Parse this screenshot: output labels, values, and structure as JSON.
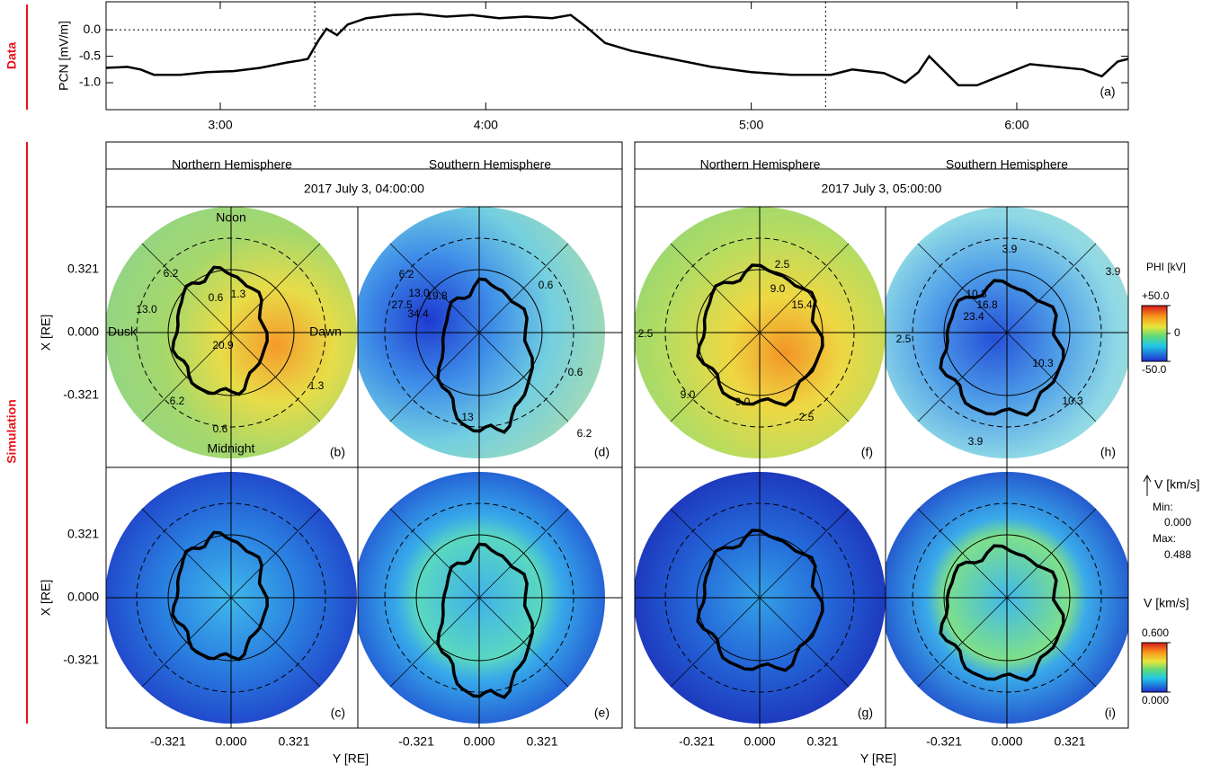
{
  "side_labels": {
    "data": "Data",
    "simulation": "Simulation"
  },
  "chart_data": {
    "type": "line",
    "y_label": "PCN [mV/m]",
    "panel_label": "(a)",
    "x": [
      2.57,
      2.65,
      2.7,
      2.75,
      2.85,
      2.95,
      3.05,
      3.15,
      3.25,
      3.3,
      3.33,
      3.37,
      3.4,
      3.44,
      3.48,
      3.55,
      3.65,
      3.75,
      3.85,
      3.95,
      4.05,
      4.15,
      4.25,
      4.32,
      4.38,
      4.45,
      4.55,
      4.7,
      4.85,
      5.0,
      5.15,
      5.3,
      5.38,
      5.5,
      5.58,
      5.63,
      5.67,
      5.72,
      5.78,
      5.85,
      5.95,
      6.05,
      6.15,
      6.25,
      6.32,
      6.38,
      6.42
    ],
    "values": [
      -0.72,
      -0.7,
      -0.75,
      -0.85,
      -0.85,
      -0.8,
      -0.78,
      -0.72,
      -0.62,
      -0.58,
      -0.55,
      -0.2,
      0.02,
      -0.1,
      0.1,
      0.22,
      0.28,
      0.3,
      0.25,
      0.28,
      0.22,
      0.25,
      0.22,
      0.28,
      0.05,
      -0.25,
      -0.4,
      -0.55,
      -0.7,
      -0.8,
      -0.85,
      -0.85,
      -0.75,
      -0.82,
      -1.0,
      -0.8,
      -0.5,
      -0.75,
      -1.05,
      -1.05,
      -0.85,
      -0.65,
      -0.7,
      -0.75,
      -0.88,
      -0.6,
      -0.55
    ],
    "color": "#000000",
    "xlim": [
      2.57,
      6.42
    ],
    "xticks": [
      {
        "value": 3,
        "label": "3:00"
      },
      {
        "value": 4,
        "label": "4:00"
      },
      {
        "value": 5,
        "label": "5:00"
      },
      {
        "value": 6,
        "label": "6:00"
      }
    ],
    "ylim": [
      -1.51,
      0.53
    ],
    "yticks": [
      {
        "value": 0,
        "label": "0.0"
      },
      {
        "value": -0.5,
        "label": "-0.5"
      },
      {
        "value": -1,
        "label": "-1.0"
      }
    ],
    "zero_line": true,
    "markers_x": [
      3.356,
      5.28
    ]
  },
  "simulation": {
    "groups": [
      {
        "north": "Northern Hemisphere",
        "south": "Southern Hemisphere",
        "time": "2017 July 3, 04:00:00"
      },
      {
        "north": "Northern Hemisphere",
        "south": "Southern Hemisphere",
        "time": "2017 July 3, 05:00:00"
      }
    ],
    "directions": {
      "noon": "Noon",
      "dusk": "Dusk",
      "dawn": "Dawn",
      "midnight": "Midnight"
    },
    "axes": {
      "x_label": "Y [RE]",
      "y_label": "X [RE]",
      "ticks": [
        {
          "value": -0.321,
          "label": "-0.321"
        },
        {
          "value": 0,
          "label": "0.000"
        },
        {
          "value": 0.321,
          "label": "0.321"
        }
      ]
    },
    "panels": [
      {
        "letter": "(b)",
        "contour_labels": [
          "6.2",
          "13.0",
          "0.6",
          "1.3",
          "20.9",
          "6.2",
          "1.3",
          "0.6"
        ]
      },
      {
        "letter": "(c)",
        "contour_labels": []
      },
      {
        "letter": "(d)",
        "contour_labels": [
          "6.2",
          "13.0",
          "19.8",
          "27.5",
          "34.4",
          "0.6",
          "0.6",
          "13",
          "6.2"
        ]
      },
      {
        "letter": "(e)",
        "contour_labels": []
      },
      {
        "letter": "(f)",
        "contour_labels": [
          "2.5",
          "9.0",
          "15.4",
          "2.5",
          "9.0",
          "9.0",
          "2.5"
        ]
      },
      {
        "letter": "(g)",
        "contour_labels": []
      },
      {
        "letter": "(h)",
        "contour_labels": [
          "3.9",
          "3.9",
          "10.3",
          "16.8",
          "23.4",
          "2.5",
          "10.3",
          "10.3",
          "3.9"
        ]
      },
      {
        "letter": "(i)",
        "contour_labels": []
      }
    ],
    "phi_colorbar": {
      "label": "PHI [kV]",
      "lim": [
        -50,
        50
      ],
      "ticks": [
        {
          "value": 50,
          "label": "+50.0"
        },
        {
          "value": 0,
          "label": "0"
        },
        {
          "value": -50,
          "label": "-50.0"
        }
      ]
    },
    "v_colorbar": {
      "arrow_label": "V [km/s]",
      "min_label": "Min:",
      "min": {
        "value": 0,
        "label": "0.000"
      },
      "max_label": "Max:",
      "max": {
        "value": 0.488,
        "label": "0.488"
      },
      "label": "V [km/s]",
      "lim": [
        0,
        0.6
      ],
      "ticks": [
        {
          "value": 0.6,
          "label": "0.600"
        },
        {
          "value": 0,
          "label": "0.000"
        }
      ]
    }
  }
}
